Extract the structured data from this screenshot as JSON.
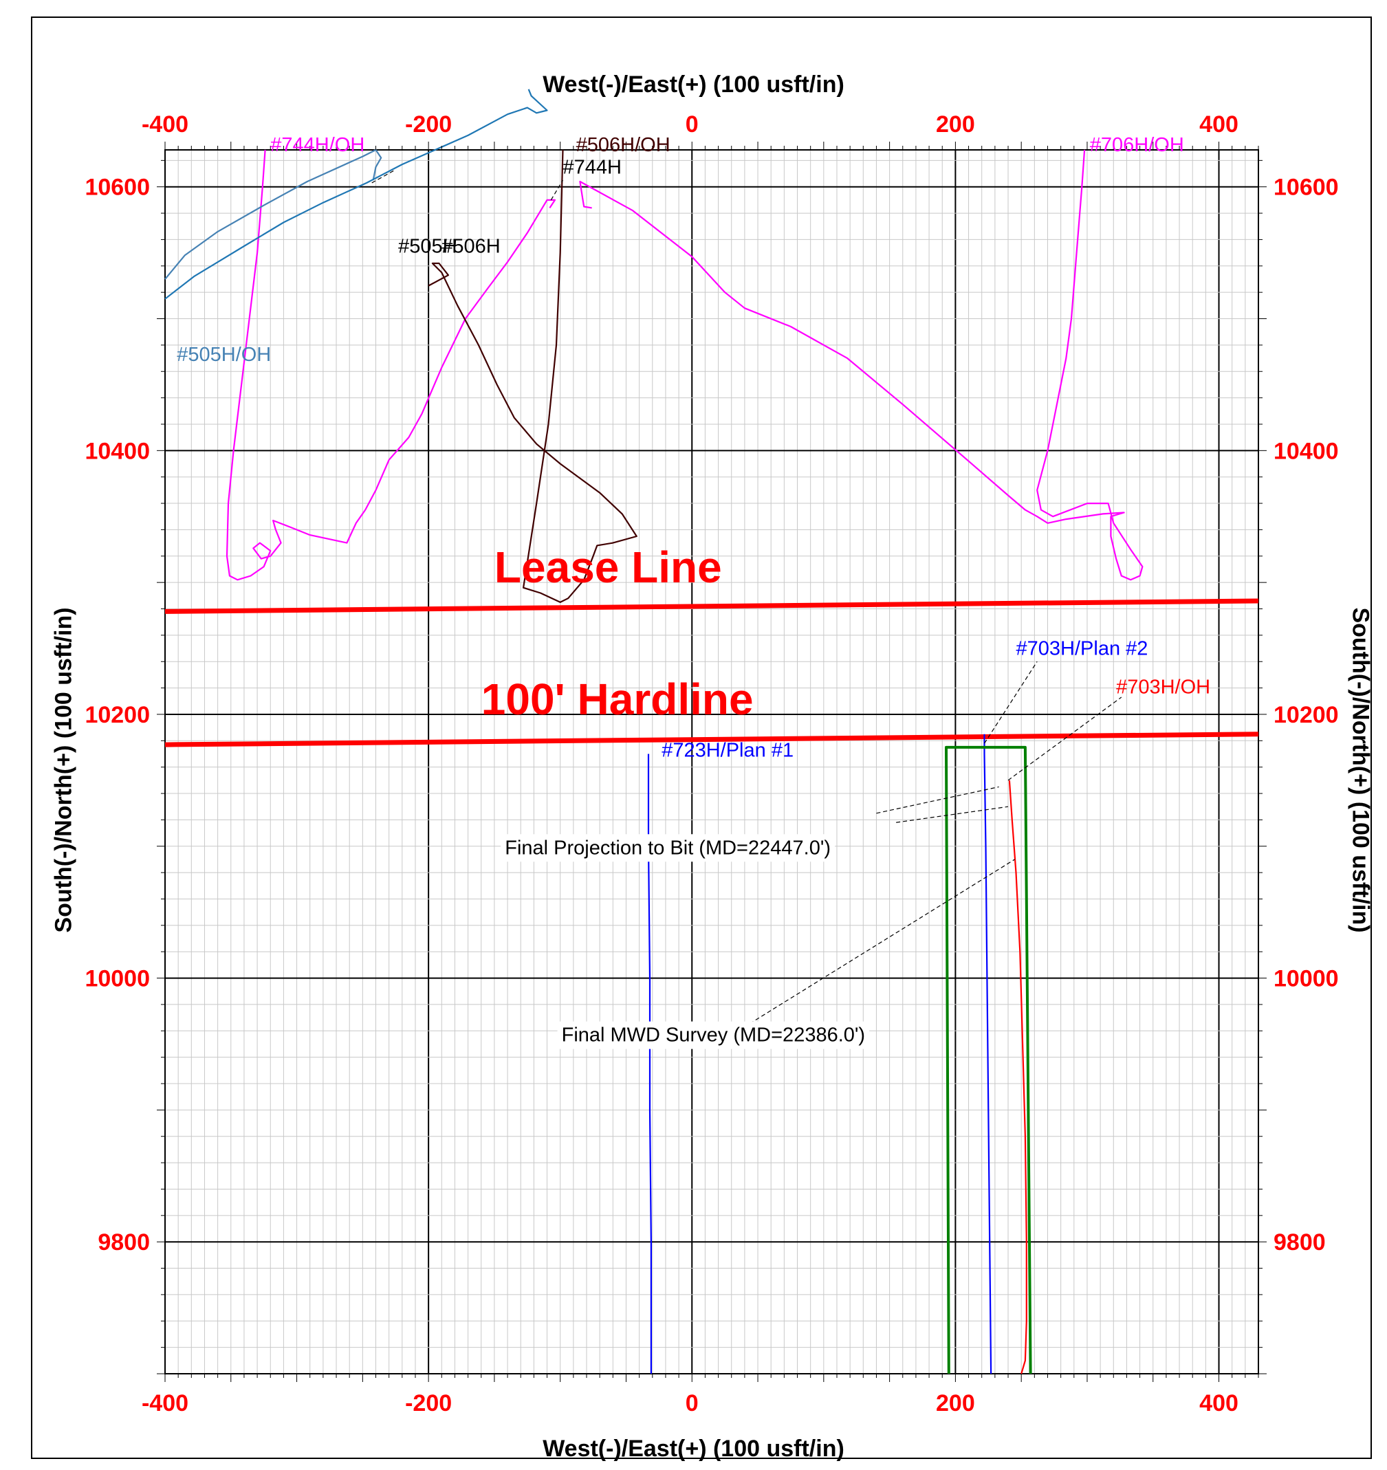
{
  "chart_data": {
    "type": "line",
    "xlabel": "West(-)/East(+) (100 usft/in)",
    "ylabel": "South(-)/North(+) (100 usft/in)",
    "xlim": [
      -400,
      430
    ],
    "ylim": [
      9700,
      10628
    ],
    "x_ticks": [
      "-400",
      "-200",
      "0",
      "200",
      "400"
    ],
    "y_ticks": [
      "9800",
      "10000",
      "10200",
      "10400",
      "10600"
    ],
    "grid": true,
    "tick_color": "#ff0000",
    "series": [
      {
        "name": "#744H/OH",
        "color": "#ff00ff",
        "points": [
          [
            -324,
            10628
          ],
          [
            -326,
            10600
          ],
          [
            -330,
            10550
          ],
          [
            -336,
            10500
          ],
          [
            -342,
            10450
          ],
          [
            -348,
            10400
          ],
          [
            -352,
            10360
          ],
          [
            -353,
            10320
          ],
          [
            -351,
            10305
          ],
          [
            -345,
            10302
          ],
          [
            -335,
            10305
          ],
          [
            -325,
            10312
          ],
          [
            -320,
            10324
          ],
          [
            -328,
            10330
          ],
          [
            -333,
            10326
          ],
          [
            -327,
            10318
          ],
          [
            -320,
            10320
          ],
          [
            -312,
            10330
          ],
          [
            -316,
            10340
          ],
          [
            -318,
            10347
          ],
          [
            -305,
            10342
          ],
          [
            -290,
            10336
          ],
          [
            -262,
            10330
          ],
          [
            -255,
            10345
          ],
          [
            -248,
            10355
          ],
          [
            -240,
            10370
          ],
          [
            -230,
            10393
          ],
          [
            -215,
            10410
          ],
          [
            -205,
            10428
          ],
          [
            -190,
            10463
          ],
          [
            -172,
            10500
          ],
          [
            -155,
            10523
          ],
          [
            -140,
            10543
          ],
          [
            -125,
            10565
          ],
          [
            -110,
            10590
          ],
          [
            -104,
            10590
          ],
          [
            -108,
            10584
          ]
        ]
      },
      {
        "name": "#706H/OH",
        "color": "#ff00ff",
        "points": [
          [
            298,
            10628
          ],
          [
            296,
            10600
          ],
          [
            292,
            10550
          ],
          [
            288,
            10500
          ],
          [
            284,
            10470
          ],
          [
            276,
            10430
          ],
          [
            270,
            10400
          ],
          [
            262,
            10370
          ],
          [
            265,
            10355
          ],
          [
            274,
            10350
          ],
          [
            300,
            10360
          ],
          [
            316,
            10360
          ],
          [
            320,
            10345
          ],
          [
            333,
            10325
          ],
          [
            342,
            10312
          ],
          [
            340,
            10305
          ],
          [
            333,
            10302
          ],
          [
            326,
            10305
          ],
          [
            322,
            10318
          ],
          [
            318,
            10335
          ],
          [
            318,
            10350
          ],
          [
            328,
            10353
          ],
          [
            312,
            10352
          ],
          [
            284,
            10348
          ],
          [
            270,
            10345
          ],
          [
            262,
            10350
          ],
          [
            253,
            10355
          ],
          [
            240,
            10366
          ],
          [
            210,
            10392
          ],
          [
            160,
            10435
          ],
          [
            118,
            10470
          ],
          [
            75,
            10494
          ],
          [
            40,
            10508
          ],
          [
            25,
            10520
          ],
          [
            0,
            10547
          ],
          [
            -45,
            10582
          ],
          [
            -85,
            10604
          ],
          [
            -83,
            10591
          ],
          [
            -82,
            10585
          ],
          [
            -76,
            10584
          ]
        ]
      },
      {
        "name": "#505H/OH",
        "color": "#4682b4",
        "points": [
          [
            -400,
            10530
          ],
          [
            -385,
            10548
          ],
          [
            -360,
            10566
          ],
          [
            -325,
            10586
          ],
          [
            -292,
            10604
          ],
          [
            -250,
            10623
          ],
          [
            -240,
            10628
          ],
          [
            -236,
            10622
          ],
          [
            -240,
            10615
          ],
          [
            -242,
            10605
          ]
        ]
      },
      {
        "name": "#505H",
        "color": "#1f77b4",
        "points": [
          [
            -400,
            10515
          ],
          [
            -378,
            10532
          ],
          [
            -340,
            10555
          ],
          [
            -310,
            10573
          ],
          [
            -280,
            10588
          ],
          [
            -247,
            10603
          ],
          [
            -220,
            10617
          ],
          [
            -170,
            10639
          ],
          [
            -140,
            10655
          ],
          [
            -125,
            10660
          ],
          [
            -118,
            10656
          ],
          [
            -110,
            10658
          ],
          [
            -122,
            10669
          ],
          [
            -124,
            10674
          ]
        ]
      },
      {
        "name": "#506H/OH",
        "color": "#400000",
        "points": [
          [
            -98,
            10628
          ],
          [
            -100,
            10550
          ],
          [
            -103,
            10480
          ],
          [
            -109,
            10420
          ],
          [
            -118,
            10360
          ],
          [
            -128,
            10296
          ],
          [
            -115,
            10292
          ],
          [
            -100,
            10285
          ],
          [
            -94,
            10288
          ],
          [
            -82,
            10302
          ],
          [
            -75,
            10320
          ],
          [
            -72,
            10328
          ],
          [
            -60,
            10330
          ],
          [
            -42,
            10335
          ],
          [
            -53,
            10352
          ],
          [
            -70,
            10368
          ],
          [
            -100,
            10390
          ],
          [
            -118,
            10405
          ],
          [
            -135,
            10425
          ],
          [
            -148,
            10450
          ],
          [
            -162,
            10480
          ],
          [
            -178,
            10510
          ],
          [
            -190,
            10535
          ],
          [
            -197,
            10542
          ],
          [
            -192,
            10542
          ],
          [
            -185,
            10533
          ],
          [
            -200,
            10525
          ]
        ]
      },
      {
        "name": "#703H/OH",
        "color": "#ff0000",
        "points": [
          [
            241,
            10150
          ],
          [
            243,
            10120
          ],
          [
            246,
            10080
          ],
          [
            249,
            10020
          ],
          [
            251,
            9950
          ],
          [
            253,
            9880
          ],
          [
            254,
            9800
          ],
          [
            254,
            9740
          ],
          [
            253,
            9710
          ],
          [
            250,
            9700
          ]
        ]
      },
      {
        "name": "#703H/Plan #2",
        "color": "#0000ff",
        "points": [
          [
            222,
            10185
          ],
          [
            222,
            10170
          ],
          [
            223,
            10100
          ],
          [
            224,
            10000
          ],
          [
            225,
            9900
          ],
          [
            226,
            9800
          ],
          [
            227,
            9700
          ]
        ]
      },
      {
        "name": "#723H/Plan #1",
        "color": "#0000ff",
        "points": [
          [
            -33,
            10170
          ],
          [
            -33,
            10100
          ],
          [
            -32,
            10000
          ],
          [
            -32,
            9900
          ],
          [
            -31,
            9800
          ],
          [
            -31,
            9700
          ]
        ]
      },
      {
        "name": "Hardline box",
        "color": "#008000",
        "points": [
          [
            195,
            9700
          ],
          [
            193,
            10175
          ],
          [
            253,
            10175
          ],
          [
            257,
            9700
          ]
        ]
      }
    ],
    "reference_lines": [
      {
        "label": "Lease Line",
        "color": "#ff0000",
        "x": [
          -400,
          430
        ],
        "y": [
          10278,
          10286
        ]
      },
      {
        "label": "100' Hardline",
        "color": "#ff0000",
        "x": [
          -400,
          430
        ],
        "y": [
          10177,
          10185
        ]
      }
    ],
    "annotations": [
      {
        "text": "#744H/OH",
        "color": "#ff00ff",
        "x": -320,
        "y": 10627
      },
      {
        "text": "#706H/OH",
        "color": "#ff00ff",
        "x": 302,
        "y": 10627
      },
      {
        "text": "#506H/OH",
        "color": "#400000",
        "x": -88,
        "y": 10627
      },
      {
        "text": "#744H",
        "color": "#000000",
        "x": -98,
        "y": 10610
      },
      {
        "text": "#505H",
        "color": "#000000",
        "x": -223,
        "y": 10550
      },
      {
        "text": "#506H",
        "color": "#000000",
        "x": -190,
        "y": 10550
      },
      {
        "text": "#505H/OH",
        "color": "#4682b4",
        "x": -391,
        "y": 10468
      },
      {
        "text": "Lease Line",
        "color": "#ff0000",
        "x": -150,
        "y": 10300
      },
      {
        "text": "#703H/Plan #2",
        "color": "#0000ff",
        "x": 246,
        "y": 10245
      },
      {
        "text": "#703H/OH",
        "color": "#ff0000",
        "x": 322,
        "y": 10216
      },
      {
        "text": "100' Hardline",
        "color": "#ff0000",
        "x": -160,
        "y": 10200
      },
      {
        "text": "#723H/Plan #1",
        "color": "#0000ff",
        "x": -23,
        "y": 10168
      },
      {
        "text": "Final Projection to Bit  (MD=22447.0')",
        "color": "#000000",
        "x": -142,
        "y": 10094
      },
      {
        "text": "Final MWD Survey (MD=22386.0')",
        "color": "#000000",
        "x": -99,
        "y": 9952
      }
    ]
  }
}
